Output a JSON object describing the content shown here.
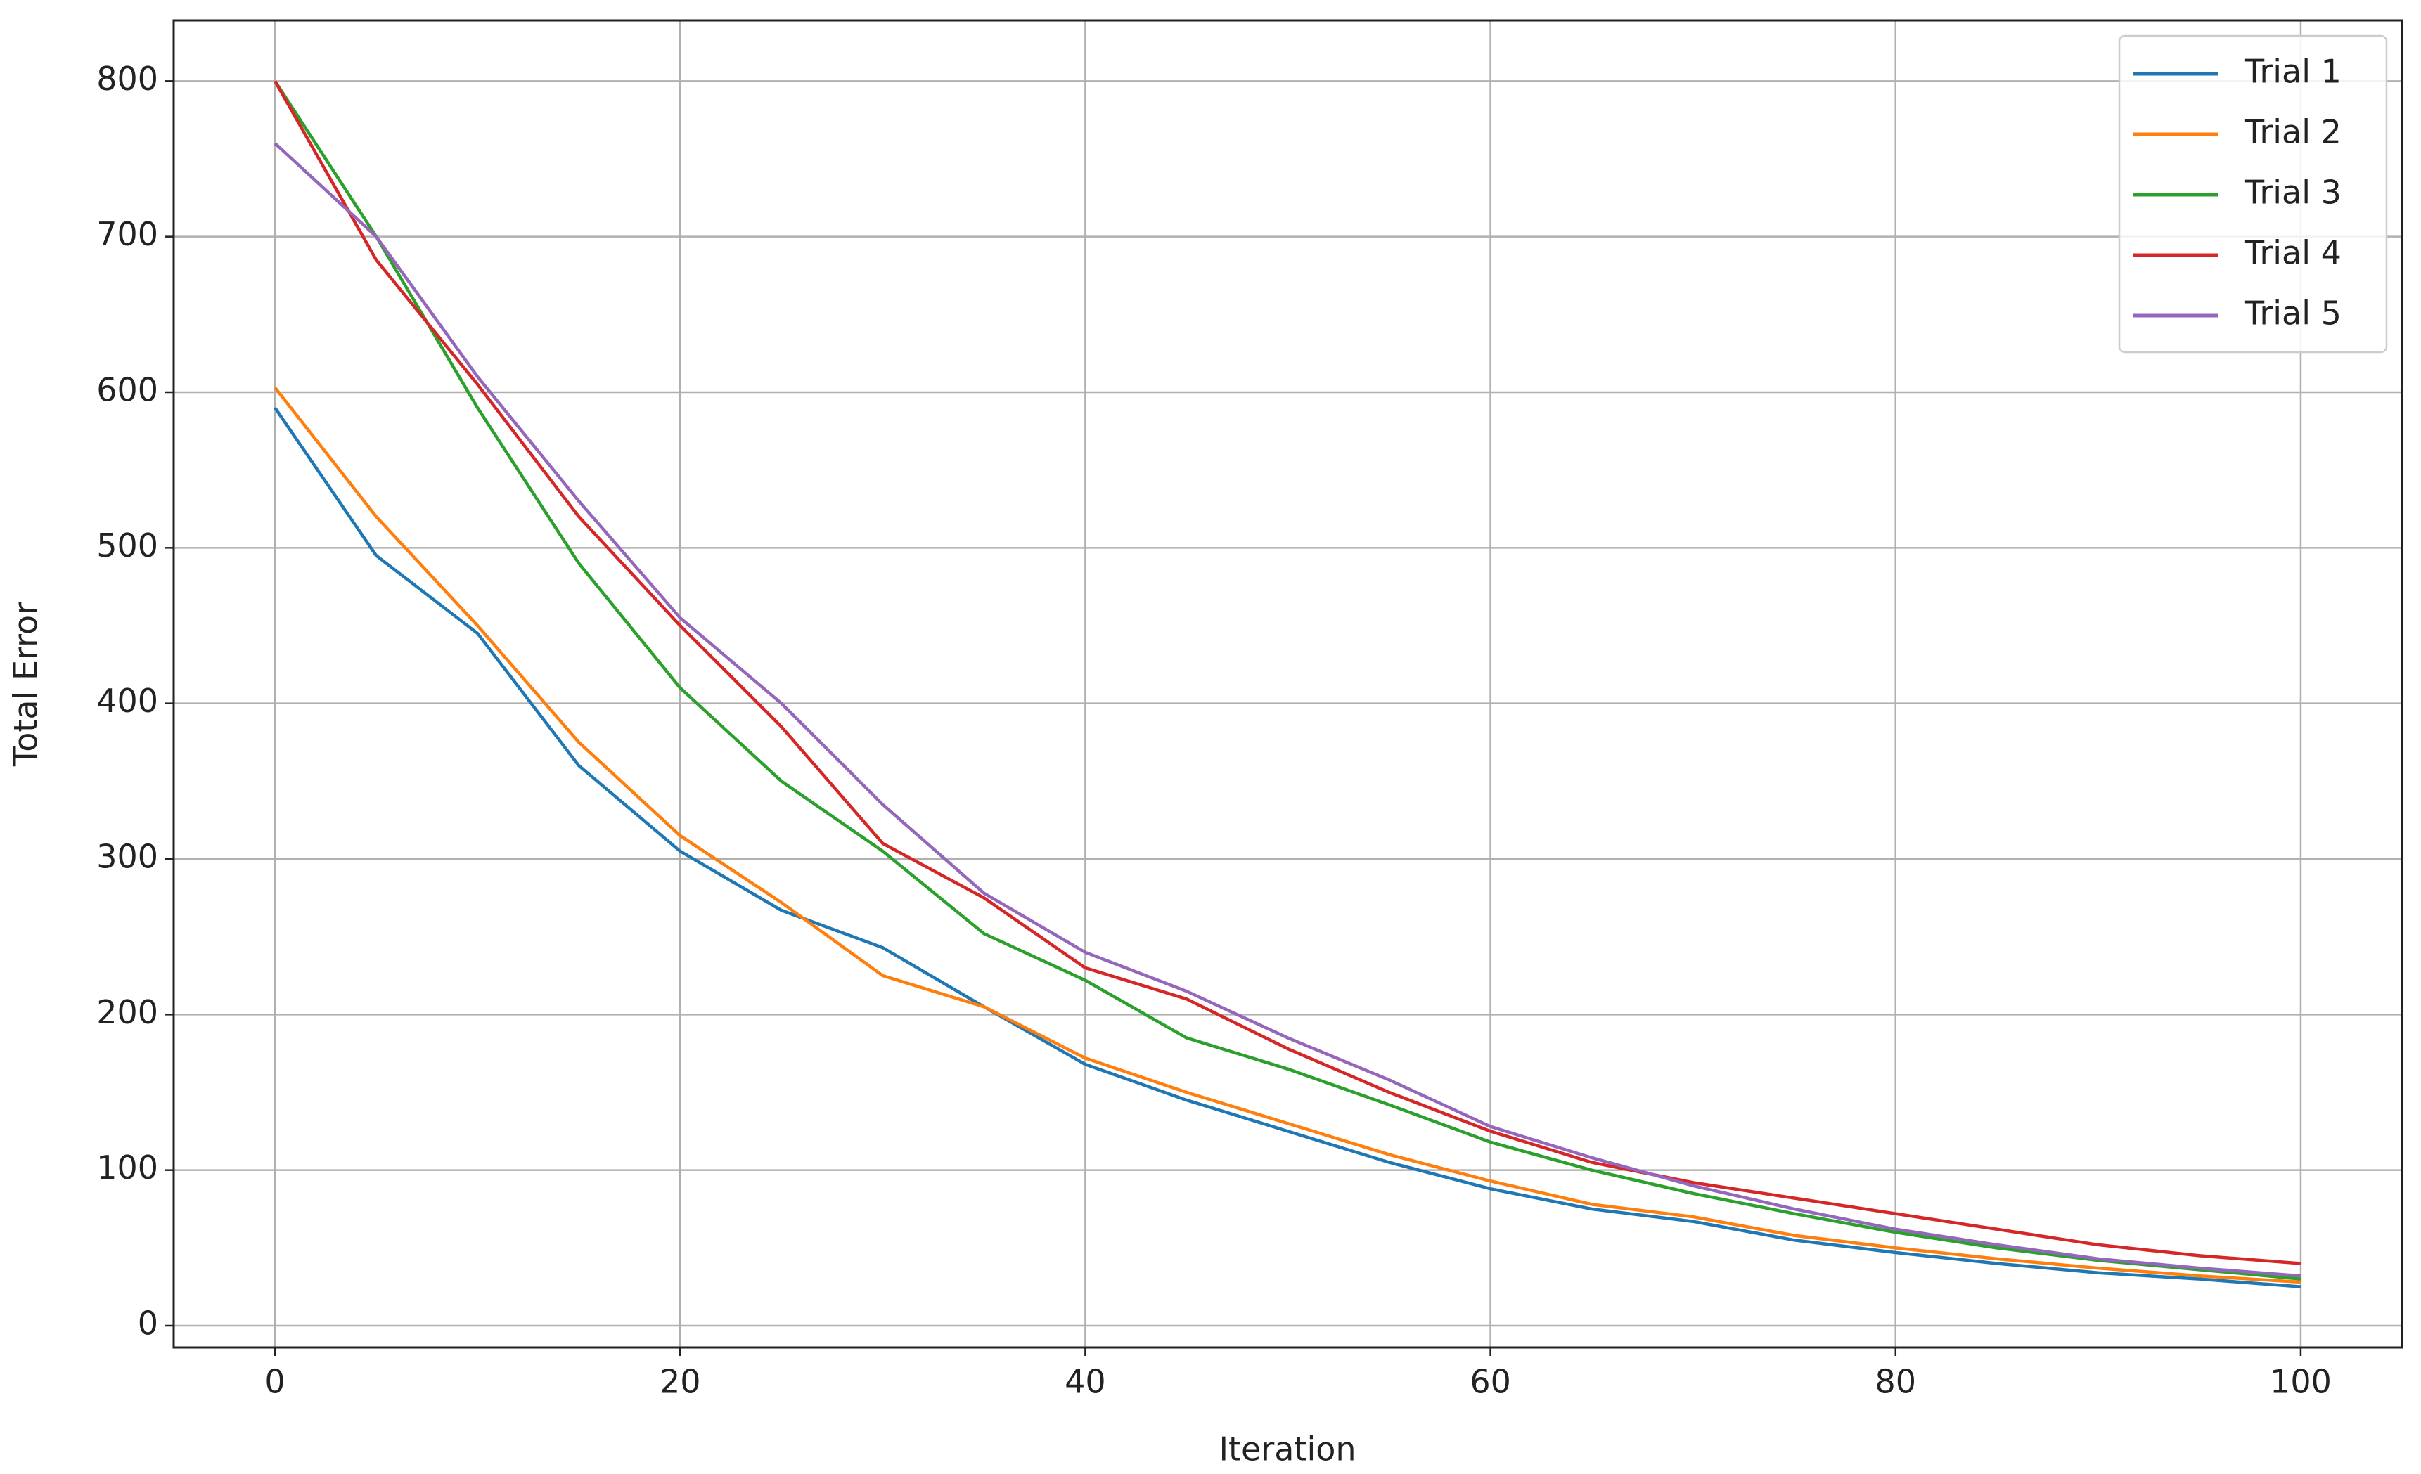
{
  "chart_data": {
    "type": "line",
    "x_label": "Iteration",
    "y_label": "Total Error",
    "x": [
      0,
      5,
      10,
      15,
      20,
      25,
      30,
      35,
      40,
      45,
      50,
      55,
      60,
      65,
      70,
      75,
      80,
      85,
      90,
      95,
      100
    ],
    "series": [
      {
        "name": "Trial 1",
        "color": "#1f77b4",
        "values": [
          590,
          495,
          445,
          360,
          305,
          267,
          243,
          205,
          168,
          145,
          125,
          105,
          88,
          75,
          67,
          55,
          47,
          40,
          34,
          30,
          25
        ]
      },
      {
        "name": "Trial 2",
        "color": "#ff7f0e",
        "values": [
          603,
          520,
          450,
          375,
          315,
          272,
          225,
          205,
          172,
          150,
          130,
          110,
          93,
          78,
          70,
          58,
          50,
          43,
          37,
          32,
          28
        ]
      },
      {
        "name": "Trial 3",
        "color": "#2ca02c",
        "values": [
          800,
          700,
          590,
          490,
          410,
          350,
          305,
          252,
          222,
          185,
          165,
          142,
          118,
          100,
          85,
          72,
          60,
          50,
          42,
          36,
          30
        ]
      },
      {
        "name": "Trial 4",
        "color": "#d62728",
        "values": [
          800,
          685,
          605,
          520,
          450,
          385,
          310,
          275,
          230,
          210,
          178,
          150,
          125,
          105,
          92,
          82,
          72,
          62,
          52,
          45,
          40
        ]
      },
      {
        "name": "Trial 5",
        "color": "#9467bd",
        "values": [
          760,
          700,
          610,
          530,
          455,
          400,
          335,
          278,
          240,
          215,
          185,
          158,
          128,
          108,
          90,
          75,
          62,
          52,
          43,
          37,
          32
        ]
      }
    ],
    "xlim": [
      -5,
      105
    ],
    "ylim": [
      -14,
      839
    ],
    "xticks": [
      0,
      20,
      40,
      60,
      80,
      100
    ],
    "yticks": [
      0,
      100,
      200,
      300,
      400,
      500,
      600,
      700,
      800
    ],
    "grid": true,
    "legend": "upper right"
  }
}
